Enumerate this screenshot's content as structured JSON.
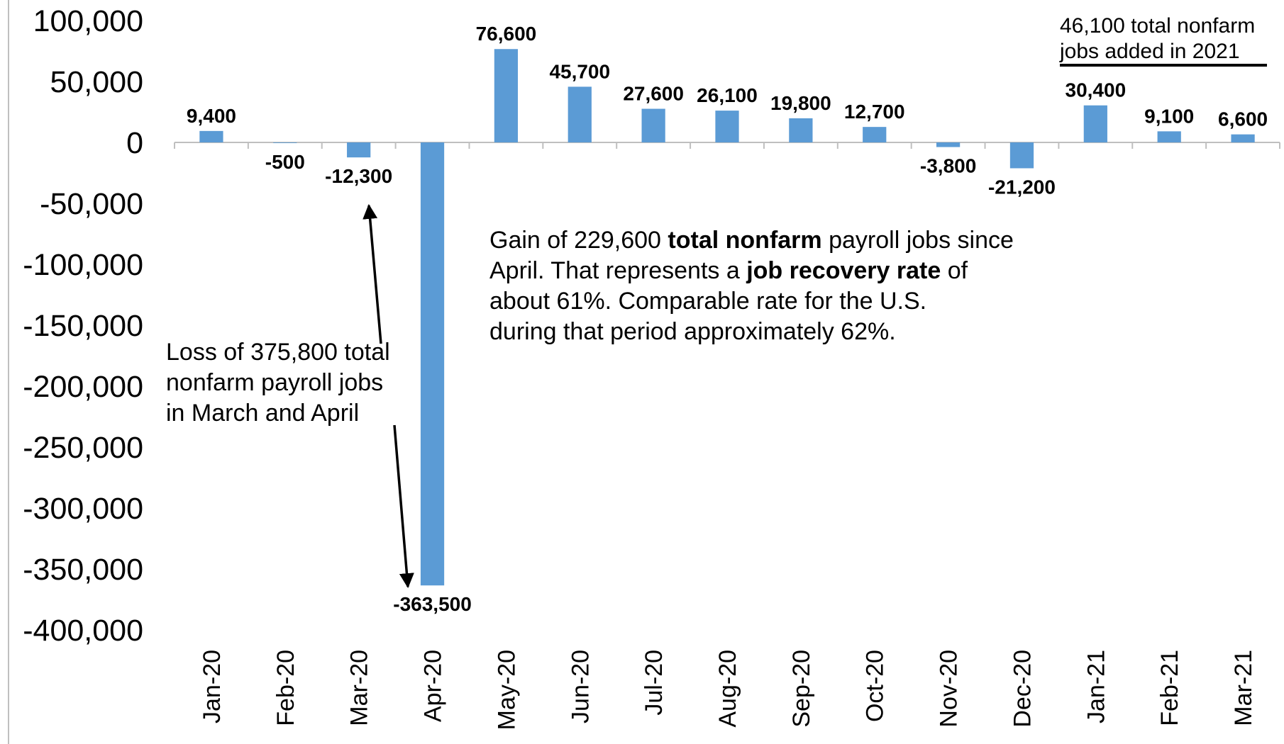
{
  "chart_data": {
    "type": "bar",
    "categories": [
      "Jan-20",
      "Feb-20",
      "Mar-20",
      "Apr-20",
      "May-20",
      "Jun-20",
      "Jul-20",
      "Aug-20",
      "Sep-20",
      "Oct-20",
      "Nov-20",
      "Dec-20",
      "Jan-21",
      "Feb-21",
      "Mar-21"
    ],
    "values": [
      9400,
      -500,
      -12300,
      -363500,
      76600,
      45700,
      27600,
      26100,
      19800,
      12700,
      -3800,
      -21200,
      30400,
      9100,
      6600
    ],
    "value_labels": [
      "9,400",
      "-500",
      "-12,300",
      "-363,500",
      "76,600",
      "45,700",
      "27,600",
      "26,100",
      "19,800",
      "12,700",
      "-3,800",
      "-21,200",
      "30,400",
      "9,100",
      "6,600"
    ],
    "color": "#5b9bd5",
    "ylim": [
      -400000,
      100000
    ],
    "yticks": [
      {
        "value": 100000,
        "label": "100,000"
      },
      {
        "value": 50000,
        "label": "50,000"
      },
      0,
      {
        "value": -50000,
        "label": "-50,000"
      },
      {
        "value": -100000,
        "label": "-100,000"
      },
      {
        "value": -150000,
        "label": "-150,000"
      },
      {
        "value": -200000,
        "label": "-200,000"
      },
      {
        "value": -250000,
        "label": "-250,000"
      },
      {
        "value": -300000,
        "label": "-300,000"
      },
      {
        "value": -350000,
        "label": "-350,000"
      },
      {
        "value": -400000,
        "label": "-400,000"
      }
    ],
    "grid": false,
    "annotations": [
      {
        "lines": [
          [
            {
              "text": "Gain of 229,600 ",
              "bold": false
            },
            {
              "text": "total nonfarm",
              "bold": true
            },
            {
              "text": " payroll jobs since",
              "bold": false
            }
          ],
          [
            {
              "text": "April. That represents a ",
              "bold": false
            },
            {
              "text": "job recovery rate",
              "bold": true
            },
            {
              "text": " of",
              "bold": false
            }
          ],
          [
            {
              "text": "about 61%. Comparable rate for the U.S.",
              "bold": false
            }
          ],
          [
            {
              "text": "during that period approximately 62%.",
              "bold": false
            }
          ]
        ]
      },
      {
        "lines": [
          [
            {
              "text": "Loss of 375,800 total",
              "bold": false
            }
          ],
          [
            {
              "text": "nonfarm payroll jobs",
              "bold": false
            }
          ],
          [
            {
              "text": "in March and April",
              "bold": false
            }
          ]
        ]
      },
      {
        "lines": [
          [
            {
              "text": "46,100 total nonfarm",
              "bold": false
            }
          ],
          [
            {
              "text": "jobs added in 2021",
              "bold": false
            }
          ]
        ]
      }
    ]
  }
}
